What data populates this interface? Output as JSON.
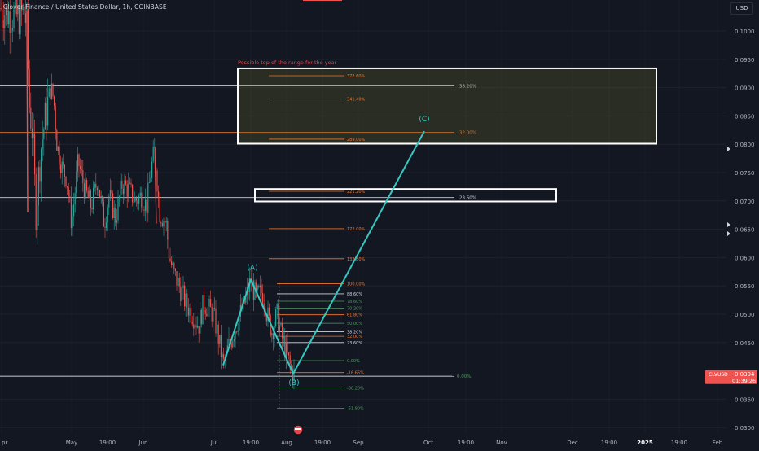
{
  "header": {
    "symbol_title": "Clover Finance / United States Dollar, 1h, COINBASE",
    "currency_button": "USD"
  },
  "colors": {
    "background": "#131722",
    "candle_up": "#26a69a",
    "candle_down": "#ef5350",
    "projection": "#35c7c0",
    "fib_orange": "#f0772f",
    "fib_green": "#4f9a5d",
    "fib_white": "#d1d4dc",
    "annotation_red": "#e0464c",
    "price_tag": "#ef5350"
  },
  "chart_data": {
    "type": "candlestick",
    "symbol": "CLV/USD",
    "y_axis": {
      "ticks": [
        "0.1000",
        "0.0950",
        "0.0900",
        "0.0850",
        "0.0800",
        "0.0750",
        "0.0700",
        "0.0650",
        "0.0600",
        "0.0550",
        "0.0500",
        "0.0450",
        "0.0350",
        "0.0300"
      ],
      "range": [
        0.0295,
        0.1055
      ]
    },
    "x_axis": {
      "ticks": [
        "pr",
        "May",
        "19:00",
        "Jun",
        "Jul",
        "19:00",
        "Aug",
        "19:00",
        "Sep",
        "Oct",
        "19:00",
        "Nov",
        "Dec",
        "19:00",
        "2025",
        "19:00",
        "Feb"
      ]
    },
    "current_price": {
      "symbol": "CLVUSD",
      "price": "0.0394",
      "countdown": "01:39:26"
    },
    "price_path": [
      [
        0,
        0.104
      ],
      [
        10,
        0.103
      ],
      [
        24,
        0.1025
      ],
      [
        30,
        0.1035
      ],
      [
        33,
        0.1005
      ],
      [
        36,
        0.087
      ],
      [
        40,
        0.082
      ],
      [
        44,
        0.068
      ],
      [
        50,
        0.079
      ],
      [
        56,
        0.085
      ],
      [
        62,
        0.09
      ],
      [
        66,
        0.088
      ],
      [
        70,
        0.08
      ],
      [
        76,
        0.076
      ],
      [
        82,
        0.074
      ],
      [
        88,
        0.066
      ],
      [
        96,
        0.077
      ],
      [
        104,
        0.072
      ],
      [
        112,
        0.069
      ],
      [
        120,
        0.074
      ],
      [
        128,
        0.066
      ],
      [
        134,
        0.071
      ],
      [
        142,
        0.067
      ],
      [
        150,
        0.073
      ],
      [
        158,
        0.072
      ],
      [
        166,
        0.07
      ],
      [
        174,
        0.071
      ],
      [
        180,
        0.069
      ],
      [
        186,
        0.076
      ],
      [
        190,
        0.079
      ],
      [
        196,
        0.068
      ],
      [
        204,
        0.066
      ],
      [
        208,
        0.06
      ],
      [
        214,
        0.057
      ],
      [
        220,
        0.055
      ],
      [
        228,
        0.052
      ],
      [
        236,
        0.05
      ],
      [
        244,
        0.048
      ],
      [
        250,
        0.052
      ],
      [
        256,
        0.051
      ],
      [
        262,
        0.05
      ],
      [
        268,
        0.046
      ],
      [
        274,
        0.041
      ],
      [
        280,
        0.044
      ],
      [
        290,
        0.048
      ],
      [
        300,
        0.052
      ],
      [
        308,
        0.056
      ],
      [
        314,
        0.053
      ],
      [
        322,
        0.054
      ],
      [
        328,
        0.05
      ],
      [
        334,
        0.047
      ],
      [
        340,
        0.05
      ],
      [
        346,
        0.046
      ],
      [
        352,
        0.043
      ],
      [
        358,
        0.04
      ],
      [
        362,
        0.0394
      ]
    ],
    "elliott_wave": {
      "labels": [
        "(A)",
        "(B)",
        "(C)"
      ],
      "points": [
        {
          "label": "start",
          "x": 274,
          "price": 0.041
        },
        {
          "label": "(A)",
          "x": 308,
          "price": 0.0561
        },
        {
          "label": "(B)",
          "x": 360,
          "price": 0.0395
        },
        {
          "label": "(C)",
          "x": 521,
          "price": 0.0823
        }
      ]
    },
    "fib_levels_primary": [
      {
        "label": "100.00%",
        "price": 0.0554,
        "color": "orange"
      },
      {
        "label": "88.60%",
        "price": 0.0536,
        "color": "white"
      },
      {
        "label": "78.60%",
        "price": 0.0523,
        "color": "green"
      },
      {
        "label": "70.20%",
        "price": 0.0511,
        "color": "green"
      },
      {
        "label": "61.80%",
        "price": 0.0499,
        "color": "orange"
      },
      {
        "label": "50.00%",
        "price": 0.0484,
        "color": "green"
      },
      {
        "label": "38.20%",
        "price": 0.0469,
        "color": "white"
      },
      {
        "label": "32.00%",
        "price": 0.0461,
        "color": "orange"
      },
      {
        "label": "23.60%",
        "price": 0.045,
        "color": "white"
      },
      {
        "label": "0.00%",
        "price": 0.0418,
        "color": "green"
      },
      {
        "label": "-16.66%",
        "price": 0.0397,
        "color": "orange"
      },
      {
        "label": "-38.20%",
        "price": 0.037,
        "color": "green"
      },
      {
        "label": "-61.80%",
        "price": 0.0334,
        "color": "green"
      }
    ],
    "fib_levels_extension": [
      {
        "label": "372.60%",
        "price": 0.0921,
        "color": "orange"
      },
      {
        "label": "341.40%",
        "price": 0.088,
        "color": "orange"
      },
      {
        "label": "289.00%",
        "price": 0.0809,
        "color": "orange"
      },
      {
        "label": "221.20%",
        "price": 0.0717,
        "color": "orange"
      },
      {
        "label": "172.00%",
        "price": 0.0651,
        "color": "orange"
      },
      {
        "label": "132.80%",
        "price": 0.0598,
        "color": "orange"
      }
    ],
    "horizontal_lines": [
      {
        "label": "38.20%",
        "price": 0.0903,
        "color": "white"
      },
      {
        "label": "32.00%",
        "price": 0.0821,
        "color": "orange"
      },
      {
        "label": "23.60%",
        "price": 0.0706,
        "color": "white"
      },
      {
        "label": "0.00%",
        "price": 0.0391,
        "color": "green"
      }
    ],
    "zones": [
      {
        "label": "Possible top of the range for the year",
        "top": 0.0934,
        "bottom": 0.0801
      },
      {
        "label": "",
        "top": 0.0721,
        "bottom": 0.0699
      }
    ]
  }
}
